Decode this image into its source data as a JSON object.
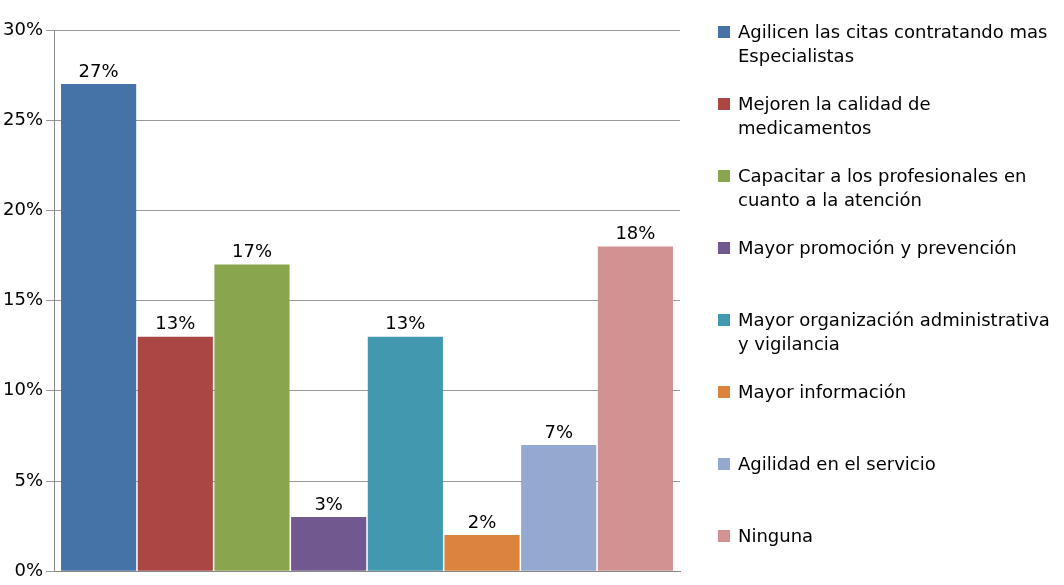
{
  "chart_data": {
    "type": "bar",
    "categories": [
      null
    ],
    "series": [
      {
        "name": "Agilicen las citas contratando mas Especialistas",
        "color": "#4572a7",
        "values": [
          27
        ],
        "value_labels": [
          "27%"
        ]
      },
      {
        "name": "Mejoren la calidad de medicamentos",
        "color": "#aa4643",
        "values": [
          13
        ],
        "value_labels": [
          "13%"
        ]
      },
      {
        "name": "Capacitar a los profesionales en cuanto a la atención",
        "color": "#89a54e",
        "values": [
          17
        ],
        "value_labels": [
          "17%"
        ]
      },
      {
        "name": "Mayor promoción y prevención",
        "color": "#71588f",
        "values": [
          3
        ],
        "value_labels": [
          "3%"
        ]
      },
      {
        "name": "Mayor organización administrativa y vigilancia",
        "color": "#4198af",
        "values": [
          13
        ],
        "value_labels": [
          "13%"
        ]
      },
      {
        "name": "Mayor información",
        "color": "#db843d",
        "values": [
          2
        ],
        "value_labels": [
          "2%"
        ]
      },
      {
        "name": "Agilidad en el servicio",
        "color": "#93a9cf",
        "values": [
          7
        ],
        "value_labels": [
          "7%"
        ]
      },
      {
        "name": "Ninguna",
        "color": "#d19392",
        "values": [
          18
        ],
        "value_labels": [
          "18%"
        ]
      }
    ],
    "ylim": [
      0,
      30
    ],
    "yticks": [
      {
        "value": 0,
        "label": "0%"
      },
      {
        "value": 5,
        "label": "5%"
      },
      {
        "value": 10,
        "label": "10%"
      },
      {
        "value": 15,
        "label": "15%"
      },
      {
        "value": 20,
        "label": "20%"
      },
      {
        "value": 25,
        "label": "25%"
      },
      {
        "value": 30,
        "label": "30%"
      }
    ],
    "grid": "y",
    "legend": "right"
  }
}
